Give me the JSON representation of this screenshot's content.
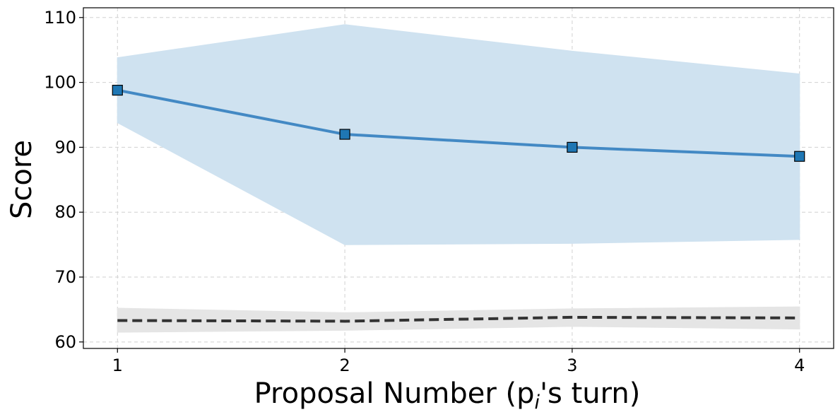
{
  "chart_data": {
    "type": "line",
    "title": "",
    "xlabel": "Proposal Number (p",
    "xlabel_sub": "i",
    "xlabel_suffix": "'s turn)",
    "ylabel": "Score",
    "x": [
      1,
      2,
      3,
      4
    ],
    "xlim": [
      0.85,
      4.15
    ],
    "ylim": [
      59,
      111.5
    ],
    "xticks": [
      1,
      2,
      3,
      4
    ],
    "yticks": [
      60,
      70,
      80,
      90,
      100,
      110
    ],
    "grid": true,
    "grid_style": "dashed",
    "series": [
      {
        "style": "solid",
        "marker": "square",
        "color": "#4389c4",
        "marker_color": "#1f77b4",
        "band_color": "#cfe2f0",
        "values": [
          98.8,
          92.0,
          90.0,
          88.6
        ],
        "band_upper": [
          103.8,
          108.9,
          104.8,
          101.3
        ],
        "band_lower": [
          93.8,
          75.0,
          75.2,
          75.8
        ]
      },
      {
        "style": "dashed",
        "marker": "none",
        "color": "#333333",
        "band_color": "#e5e5e5",
        "values": [
          63.3,
          63.2,
          63.8,
          63.7
        ],
        "band_upper": [
          65.2,
          64.5,
          65.1,
          65.4
        ],
        "band_lower": [
          61.5,
          61.8,
          62.4,
          62.0
        ]
      }
    ]
  }
}
